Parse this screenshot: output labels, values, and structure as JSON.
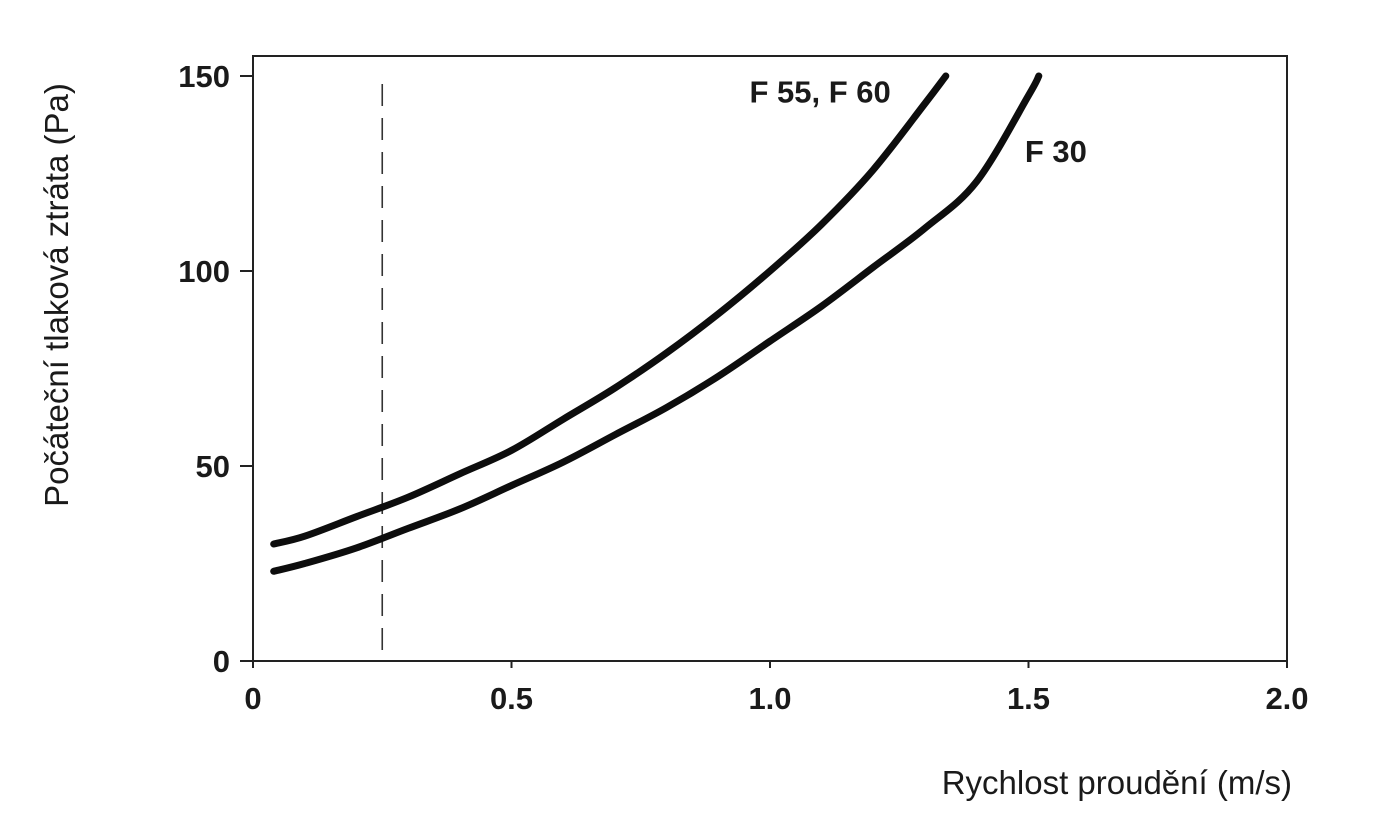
{
  "chart_data": {
    "type": "line",
    "xlabel": "Rychlost proudění (m/s)",
    "ylabel": "Počáteční tlaková ztráta (Pa)",
    "xlim": [
      0,
      2.0
    ],
    "ylim": [
      0,
      150
    ],
    "x_ticks": [
      "0",
      "0.5",
      "1.0",
      "1.5",
      "2.0"
    ],
    "y_ticks": [
      "0",
      "50",
      "100",
      "150"
    ],
    "grid": false,
    "reference_line": {
      "x": 0.25,
      "style": "dashed"
    },
    "series": [
      {
        "name": "F 55, F 60",
        "x": [
          0.04,
          0.1,
          0.2,
          0.3,
          0.4,
          0.5,
          0.6,
          0.7,
          0.8,
          0.9,
          1.0,
          1.1,
          1.2,
          1.3,
          1.34
        ],
        "y": [
          30,
          32,
          37,
          42,
          48,
          54,
          62,
          70,
          79,
          89,
          100,
          112,
          126,
          143,
          150
        ]
      },
      {
        "name": "F 30",
        "x": [
          0.04,
          0.1,
          0.2,
          0.3,
          0.4,
          0.5,
          0.6,
          0.7,
          0.8,
          0.9,
          1.0,
          1.1,
          1.2,
          1.3,
          1.4,
          1.5,
          1.52
        ],
        "y": [
          23,
          25,
          29,
          34,
          39,
          45,
          51,
          58,
          65,
          73,
          82,
          91,
          101,
          111,
          123,
          145,
          150
        ]
      }
    ]
  }
}
